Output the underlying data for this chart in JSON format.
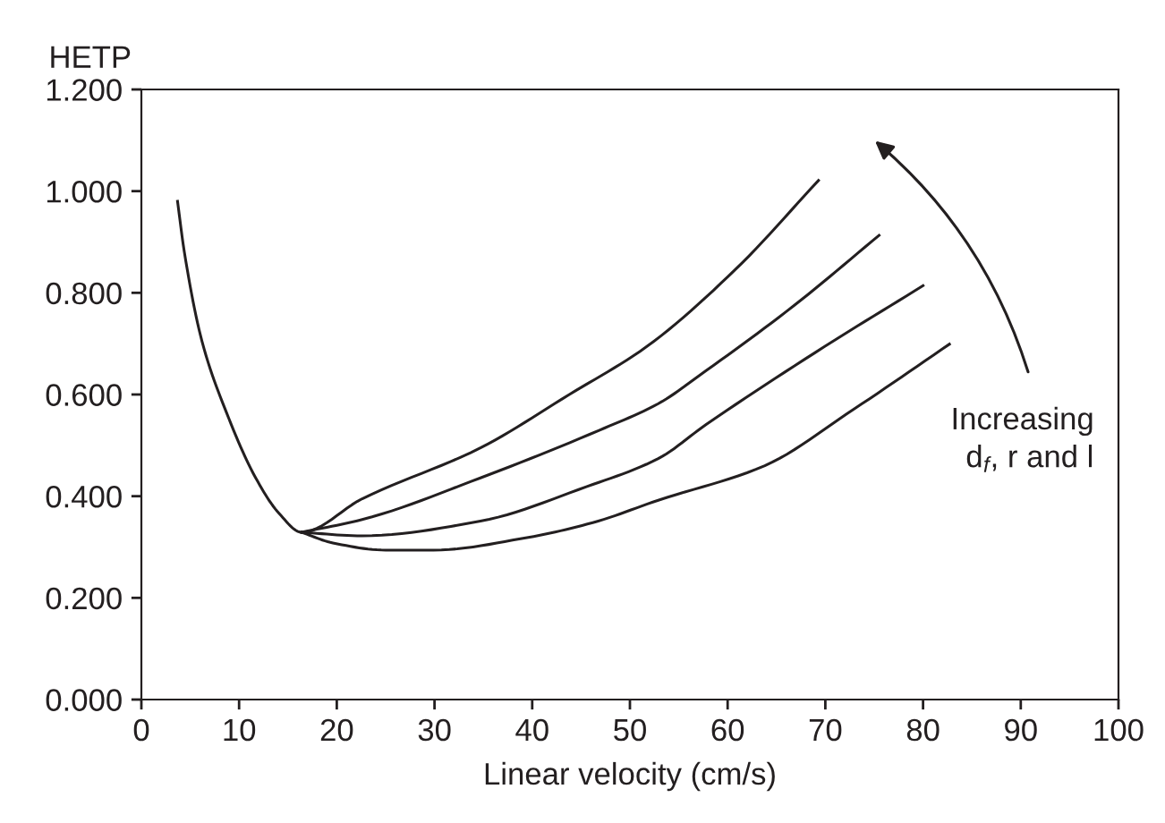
{
  "chart_data": {
    "type": "line",
    "xlabel": "Linear velocity (cm/s)",
    "ylabel": "HETP",
    "xlim": [
      0,
      100
    ],
    "xticks": [
      0,
      10,
      20,
      30,
      40,
      50,
      60,
      70,
      80,
      90,
      100
    ],
    "ylim": [
      0,
      1.2
    ],
    "yticks": [
      {
        "value": 0,
        "label": "0.000"
      },
      {
        "value": 0.2,
        "label": "0.200"
      },
      {
        "value": 0.4,
        "label": "0.400"
      },
      {
        "value": 0.6,
        "label": "0.600"
      },
      {
        "value": 0.8,
        "label": "0.800"
      },
      {
        "value": 1.0,
        "label": "1.000"
      },
      {
        "value": 1.2,
        "label": "1.200"
      }
    ],
    "grid": false,
    "legend": false,
    "marker": "none",
    "line_style": "solid",
    "series": [
      {
        "color": "#231f20",
        "x": [
          3.7,
          4.4,
          6.2,
          8.7,
          11.7,
          14.1,
          16.4,
          22.6,
          34.7,
          43.8,
          51.7,
          60.8,
          69.3
        ],
        "values": [
          0.98,
          0.88,
          0.705,
          0.565,
          0.436,
          0.366,
          0.329,
          0.395,
          0.495,
          0.6,
          0.694,
          0.846,
          1.021
        ]
      },
      {
        "color": "#231f20",
        "x": [
          16.4,
          22.6,
          34.7,
          46.9,
          52.9,
          57.8,
          66.8,
          75.5
        ],
        "values": [
          0.329,
          0.354,
          0.436,
          0.53,
          0.582,
          0.647,
          0.775,
          0.913
        ]
      },
      {
        "color": "#231f20",
        "x": [
          16.4,
          22.6,
          34.7,
          45.6,
          52.9,
          57.8,
          69.9,
          80
        ],
        "values": [
          0.329,
          0.322,
          0.351,
          0.419,
          0.474,
          0.541,
          0.694,
          0.814
        ]
      },
      {
        "color": "#231f20",
        "x": [
          16.4,
          19.6,
          25,
          29.9,
          39.6,
          46.2,
          52.9,
          63.8,
          72.9,
          82.7
        ],
        "values": [
          0.329,
          0.308,
          0.294,
          0.294,
          0.319,
          0.348,
          0.392,
          0.46,
          0.571,
          0.699
        ]
      }
    ],
    "annotations": [
      "Increasing\nd$_{f}$, r and l"
    ]
  }
}
